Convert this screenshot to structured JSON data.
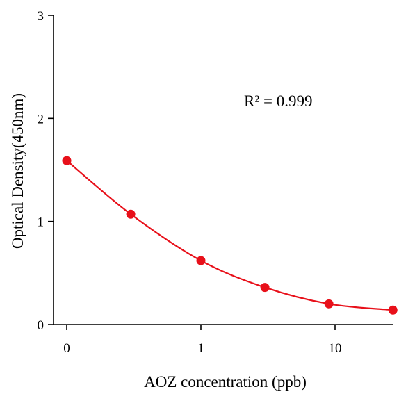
{
  "chart_data": {
    "type": "scatter",
    "title": "",
    "xlabel": "AOZ concentration (ppb)",
    "ylabel": "Optical Density(450nm)",
    "x_scale": "log",
    "x_ticks": [
      "0",
      "1",
      "10"
    ],
    "y_ticks": [
      "0",
      "1",
      "2",
      "3"
    ],
    "ylim": [
      0,
      3
    ],
    "grid": false,
    "legend": "none",
    "annotation": "R² = 0.999",
    "series": [
      {
        "color": "#e8101a",
        "points": [
          {
            "x": "0",
            "y": 1.59
          },
          {
            "x": 0.3,
            "y": 1.07
          },
          {
            "x": 1,
            "y": 0.62
          },
          {
            "x": 3,
            "y": 0.36
          },
          {
            "x": 9,
            "y": 0.2
          },
          {
            "x": 27,
            "y": 0.14
          }
        ],
        "fit_curve": true
      }
    ]
  }
}
